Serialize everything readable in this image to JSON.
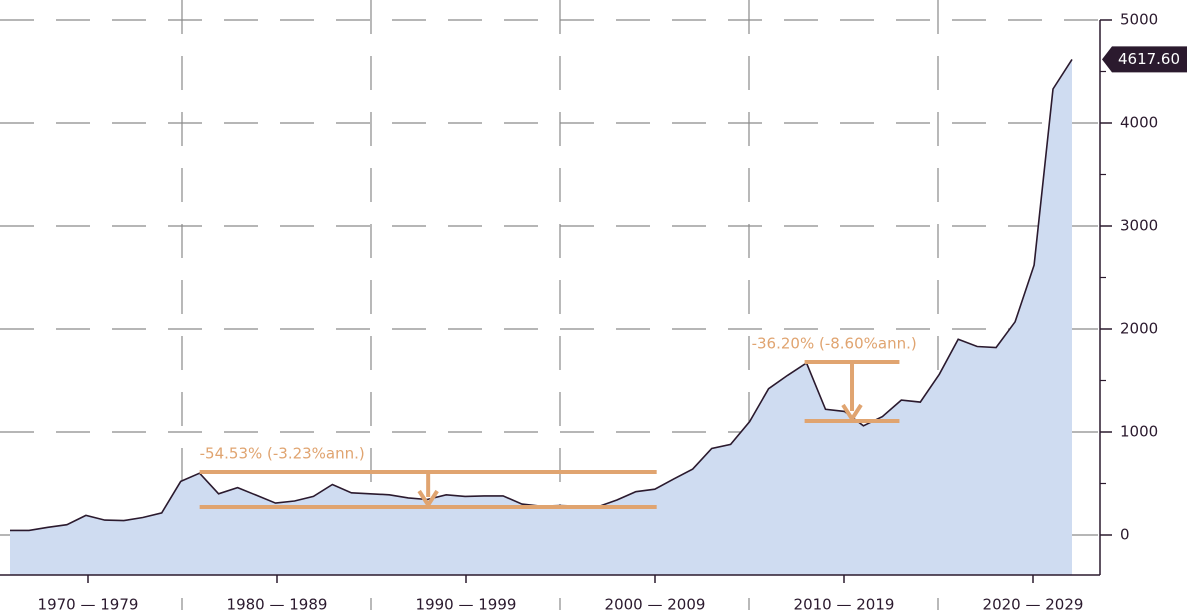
{
  "chart_data": {
    "type": "area",
    "x": [
      1970,
      1971,
      1972,
      1973,
      1974,
      1975,
      1976,
      1977,
      1978,
      1979,
      1980,
      1981,
      1982,
      1983,
      1984,
      1985,
      1986,
      1987,
      1988,
      1989,
      1990,
      1991,
      1992,
      1993,
      1994,
      1995,
      1996,
      1997,
      1998,
      1999,
      2000,
      2001,
      2002,
      2003,
      2004,
      2005,
      2006,
      2007,
      2008,
      2009,
      2010,
      2011,
      2012,
      2013,
      2014,
      2015,
      2016,
      2017,
      2018,
      2019,
      2020,
      2021,
      2022,
      2023,
      2024,
      2025,
      2026
    ],
    "values": [
      45,
      45,
      75,
      100,
      190,
      145,
      140,
      170,
      215,
      520,
      600,
      400,
      460,
      385,
      310,
      330,
      375,
      490,
      410,
      400,
      390,
      360,
      345,
      390,
      375,
      380,
      380,
      300,
      280,
      285,
      280,
      275,
      340,
      420,
      445,
      545,
      640,
      840,
      880,
      1100,
      1420,
      1550,
      1670,
      1220,
      1200,
      1060,
      1150,
      1310,
      1290,
      1560,
      1900,
      1830,
      1820,
      2070,
      2620,
      4330,
      4617.6
    ],
    "last_label": "4617.60",
    "color": "#cfdcf1",
    "line_color": "#2b1a2e",
    "annotation_color": "#e0a470",
    "xlim": [
      1970,
      2026
    ],
    "decades": [
      "1970 — 1979",
      "1980 — 1989",
      "1990 — 1999",
      "2000 — 2009",
      "2010 — 2019",
      "2020 — 2029"
    ],
    "ylim": [
      0,
      5000
    ],
    "yticks": [
      0,
      1000,
      2000,
      3000,
      4000,
      5000
    ],
    "minor_yticks": [
      500,
      1500,
      2500,
      3500,
      4500
    ],
    "grid": true,
    "annotations": [
      {
        "text": "-54.53% (-3.23%ann.)",
        "top": 612,
        "bottom": 272,
        "x_range": [
          1980,
          2004.1
        ]
      },
      {
        "text": "-36.20% (-8.60%ann.)",
        "top": 1680,
        "bottom": 1107,
        "x_range": [
          2011.9,
          2016.9
        ]
      }
    ]
  }
}
